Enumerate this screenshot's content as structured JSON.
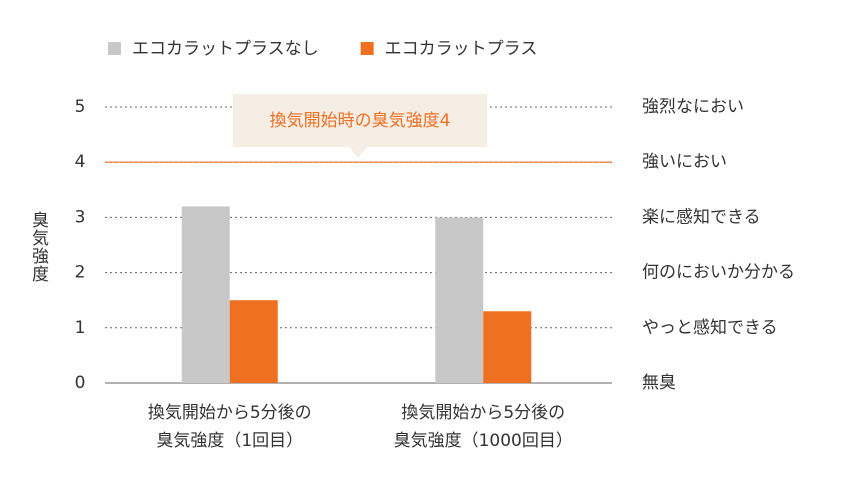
{
  "chart_data": {
    "type": "bar",
    "y_label": "臭気強度",
    "categories": [
      [
        "換気開始から5分後の",
        "臭気強度（1回目）"
      ],
      [
        "換気開始から5分後の",
        "臭気強度（1000回目）"
      ]
    ],
    "series": [
      {
        "name": "エコカラットプラスなし",
        "color": "#c8c8c8",
        "values": [
          3.2,
          3.0
        ]
      },
      {
        "name": "エコカラットプラス",
        "color": "#f07022",
        "values": [
          1.5,
          1.3
        ]
      }
    ],
    "ylim": [
      0,
      5
    ],
    "yticks": [
      0,
      1,
      2,
      3,
      4,
      5
    ],
    "right_labels": [
      "無臭",
      "やっと感知できる",
      "何のにおいか分かる",
      "楽に感知できる",
      "強いにおい",
      "強烈なにおい"
    ],
    "reference_line": {
      "value": 4,
      "color": "#f07022",
      "label": "換気開始時の臭気強度4"
    },
    "grid": true
  }
}
